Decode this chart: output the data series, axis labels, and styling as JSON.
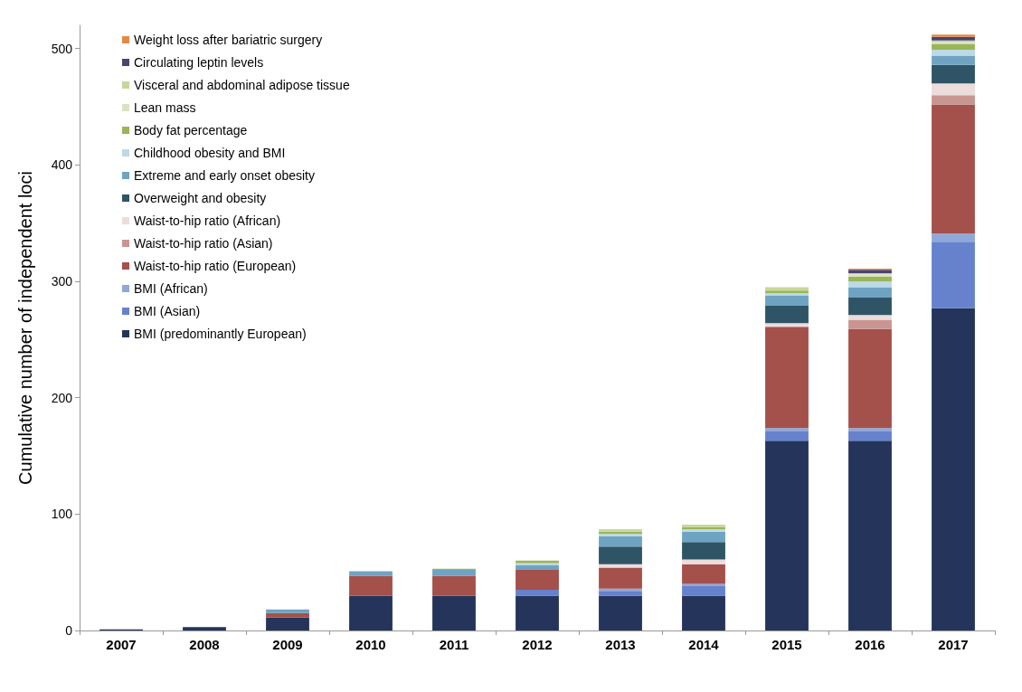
{
  "chart_data": {
    "type": "bar",
    "stacked": true,
    "ylabel": "Cumulative number of independent loci",
    "categories": [
      "2007",
      "2008",
      "2009",
      "2010",
      "2011",
      "2012",
      "2013",
      "2014",
      "2015",
      "2016",
      "2017"
    ],
    "ylim": [
      0,
      520
    ],
    "yticks": [
      0,
      100,
      200,
      300,
      400,
      500
    ],
    "grid": false,
    "legend": "top left",
    "series": [
      {
        "name": "BMI (predominantly European)",
        "color": "#25345a",
        "values": [
          1,
          3,
          11,
          30,
          30,
          30,
          30,
          30,
          163,
          163,
          277
        ]
      },
      {
        "name": "BMI (Asian)",
        "color": "#6682cc",
        "values": [
          0,
          0,
          0,
          0,
          0,
          5,
          4,
          8,
          8,
          8,
          57
        ]
      },
      {
        "name": "BMI (African)",
        "color": "#8fa8da",
        "values": [
          0,
          0,
          0,
          0,
          0,
          0,
          2,
          2,
          3,
          3,
          7
        ]
      },
      {
        "name": "Waist-to-hip ratio (European)",
        "color": "#a4504b",
        "values": [
          0,
          0,
          4,
          17,
          17,
          17,
          18,
          17,
          87,
          85,
          111
        ]
      },
      {
        "name": "Waist-to-hip ratio (Asian)",
        "color": "#c99591",
        "values": [
          0,
          0,
          0,
          0,
          0,
          0,
          0,
          0,
          0,
          8,
          8
        ]
      },
      {
        "name": "Waist-to-hip ratio (African)",
        "color": "#ecdcdc",
        "values": [
          0,
          0,
          0,
          0,
          0,
          0,
          3,
          4,
          3,
          4,
          10
        ]
      },
      {
        "name": "Overweight and obesity",
        "color": "#2f5466",
        "values": [
          0,
          0,
          0,
          0,
          0,
          0,
          15,
          15,
          15,
          15,
          16
        ]
      },
      {
        "name": "Extreme and early onset obesity",
        "color": "#6fa3c2",
        "values": [
          0,
          0,
          3,
          4,
          5,
          4,
          9,
          9,
          9,
          9,
          8
        ]
      },
      {
        "name": "Childhood obesity and BMI",
        "color": "#bcd9e6",
        "values": [
          0,
          0,
          0,
          0,
          0,
          2,
          2,
          2,
          2,
          5,
          5
        ]
      },
      {
        "name": "Body fat percentage",
        "color": "#9ab556",
        "values": [
          0,
          0,
          0,
          0,
          1,
          2,
          2,
          2,
          2,
          4,
          5
        ]
      },
      {
        "name": "Lean mass",
        "color": "#d9e3c3",
        "values": [
          0,
          0,
          0,
          0,
          0,
          0,
          null,
          null,
          null,
          2,
          2
        ]
      },
      {
        "name": "Visceral and abdominal adipose tissue",
        "color": "#c5d89a",
        "values": [
          0,
          0,
          0,
          0,
          0,
          0,
          2,
          2,
          3,
          1,
          1
        ]
      },
      {
        "name": "Circulating leptin levels",
        "color": "#4a4370",
        "values": [
          0,
          0,
          0,
          0,
          0,
          0,
          0,
          0,
          0,
          3,
          3
        ]
      },
      {
        "name": "Weight loss after bariatric surgery",
        "color": "#e08a4a",
        "values": [
          0,
          0,
          0,
          0,
          0,
          0,
          0,
          0,
          0,
          1,
          2
        ]
      }
    ]
  }
}
